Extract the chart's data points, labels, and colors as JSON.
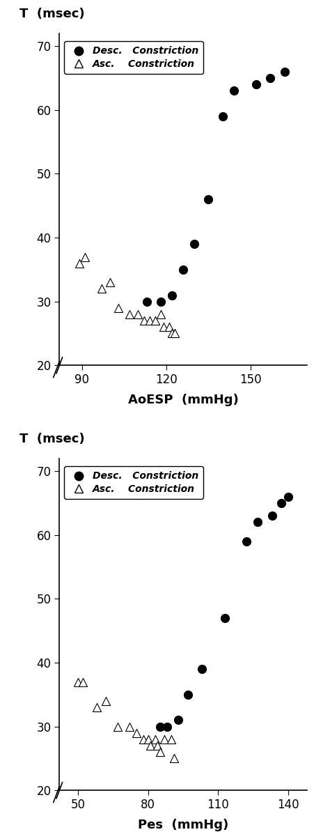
{
  "plot1": {
    "title_y": "T  (msec)",
    "xlabel": "AoESP  (mmHg)",
    "xlim": [
      82,
      170
    ],
    "ylim": [
      20,
      72
    ],
    "xticks": [
      90,
      120,
      150
    ],
    "yticks": [
      20,
      30,
      40,
      50,
      60,
      70
    ],
    "desc_x": [
      113,
      118,
      122,
      126,
      130,
      135,
      140,
      144,
      152,
      157,
      162
    ],
    "desc_y": [
      30,
      30,
      31,
      35,
      39,
      46,
      59,
      63,
      64,
      65,
      66
    ],
    "asc_x": [
      89,
      91,
      97,
      100,
      103,
      107,
      110,
      112,
      114,
      116,
      118,
      119,
      121,
      122,
      123
    ],
    "asc_y": [
      36,
      37,
      32,
      33,
      29,
      28,
      28,
      27,
      27,
      27,
      28,
      26,
      26,
      25,
      25
    ]
  },
  "plot2": {
    "title_y": "T  (msec)",
    "xlabel": "Pes  (mmHg)",
    "xlim": [
      42,
      148
    ],
    "ylim": [
      20,
      72
    ],
    "xticks": [
      50,
      80,
      110,
      140
    ],
    "yticks": [
      20,
      30,
      40,
      50,
      60,
      70
    ],
    "desc_x": [
      85,
      88,
      93,
      97,
      103,
      113,
      122,
      127,
      133,
      137,
      140
    ],
    "desc_y": [
      30,
      30,
      31,
      35,
      39,
      47,
      59,
      62,
      63,
      65,
      66
    ],
    "asc_x": [
      50,
      52,
      58,
      62,
      67,
      72,
      75,
      78,
      80,
      81,
      83,
      84,
      85,
      87,
      90,
      91
    ],
    "asc_y": [
      37,
      37,
      33,
      34,
      30,
      30,
      29,
      28,
      28,
      27,
      28,
      27,
      26,
      28,
      28,
      25
    ]
  },
  "legend_desc_label": "Desc.   Constriction",
  "legend_asc_label": "Asc.    Constriction",
  "marker_color_desc": "black",
  "marker_color_asc": "white",
  "marker_edge_color": "black",
  "fig_width": 4.74,
  "fig_height": 11.94
}
